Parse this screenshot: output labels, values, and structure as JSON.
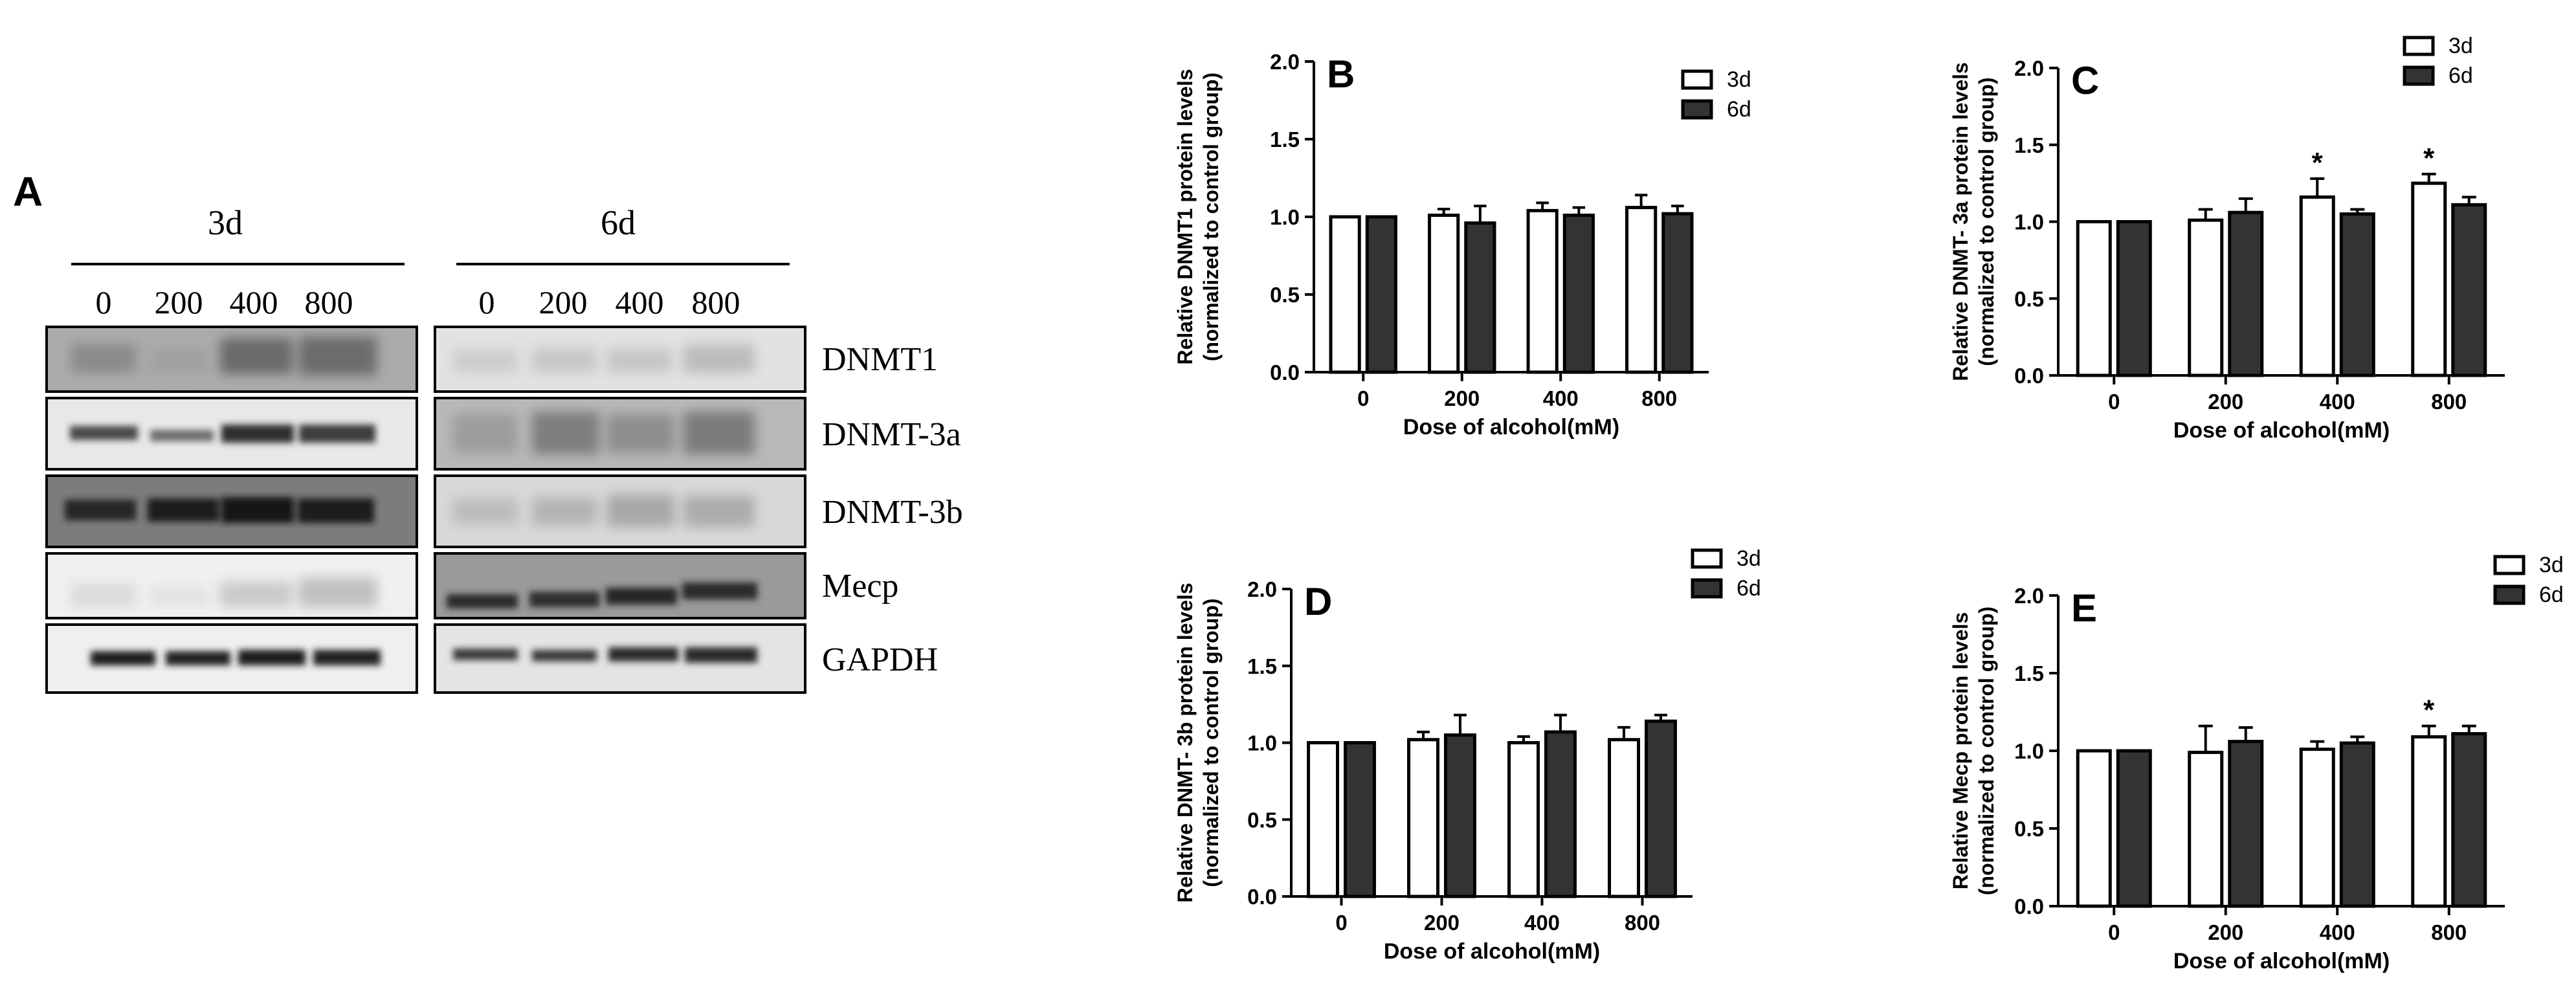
{
  "colors": {
    "bar_3d": "#ffffff",
    "bar_6d": "#333333",
    "axis": "#000000",
    "background": "#ffffff"
  },
  "western_blot": {
    "panel_label": "A",
    "groups": [
      {
        "label": "3d",
        "doses": [
          "0",
          "200",
          "400",
          "800"
        ]
      },
      {
        "label": "6d",
        "doses": [
          "0",
          "200",
          "400",
          "800"
        ]
      }
    ],
    "proteins": [
      "DNMT1",
      "DNMT-3a",
      "DNMT-3b",
      "Mecp",
      "GAPDH"
    ]
  },
  "chart_data": [
    {
      "panel": "B",
      "type": "bar",
      "title": "",
      "ylabel": "Relative DNMT1 protein levels\n(normalized to control group)",
      "xlabel": "Dose of alcohol(mM)",
      "categories": [
        "0",
        "200",
        "400",
        "800"
      ],
      "ylim": [
        0,
        2.0
      ],
      "yticks": [
        "0.0",
        "0.5",
        "1.0",
        "1.5",
        "2.0"
      ],
      "legend_position": "top-right",
      "series": [
        {
          "name": "3d",
          "values": [
            1.0,
            1.01,
            1.04,
            1.06
          ],
          "errors": [
            0.0,
            0.04,
            0.05,
            0.08
          ],
          "significant": [
            false,
            false,
            false,
            false
          ]
        },
        {
          "name": "6d",
          "values": [
            1.0,
            0.96,
            1.01,
            1.02
          ],
          "errors": [
            0.0,
            0.11,
            0.05,
            0.05
          ],
          "significant": [
            false,
            false,
            false,
            false
          ]
        }
      ]
    },
    {
      "panel": "C",
      "type": "bar",
      "title": "",
      "ylabel": "Relative DNMT- 3a protein levels\n(normalized to control group)",
      "xlabel": "Dose of alcohol(mM)",
      "categories": [
        "0",
        "200",
        "400",
        "800"
      ],
      "ylim": [
        0,
        2.0
      ],
      "yticks": [
        "0.0",
        "0.5",
        "1.0",
        "1.5",
        "2.0"
      ],
      "legend_position": "top-right",
      "series": [
        {
          "name": "3d",
          "values": [
            1.0,
            1.01,
            1.16,
            1.25
          ],
          "errors": [
            0.0,
            0.07,
            0.12,
            0.06
          ],
          "significant": [
            false,
            false,
            true,
            true
          ]
        },
        {
          "name": "6d",
          "values": [
            1.0,
            1.06,
            1.05,
            1.11
          ],
          "errors": [
            0.0,
            0.09,
            0.03,
            0.05
          ],
          "significant": [
            false,
            false,
            false,
            false
          ]
        }
      ],
      "significance_marker": "*"
    },
    {
      "panel": "D",
      "type": "bar",
      "title": "",
      "ylabel": "Relative DNMT- 3b protein levels\n(normalized to control group)",
      "xlabel": "Dose of alcohol(mM)",
      "categories": [
        "0",
        "200",
        "400",
        "800"
      ],
      "ylim": [
        0,
        2.0
      ],
      "yticks": [
        "0.0",
        "0.5",
        "1.0",
        "1.5",
        "2.0"
      ],
      "legend_position": "top-right",
      "series": [
        {
          "name": "3d",
          "values": [
            1.0,
            1.02,
            1.0,
            1.02
          ],
          "errors": [
            0.0,
            0.05,
            0.04,
            0.08
          ],
          "significant": [
            false,
            false,
            false,
            false
          ]
        },
        {
          "name": "6d",
          "values": [
            1.0,
            1.05,
            1.07,
            1.14
          ],
          "errors": [
            0.0,
            0.13,
            0.11,
            0.04
          ],
          "significant": [
            false,
            false,
            false,
            false
          ]
        }
      ]
    },
    {
      "panel": "E",
      "type": "bar",
      "title": "",
      "ylabel": "Relative Mecp protein levels\n(normalized to control group)",
      "xlabel": "Dose of alcohol(mM)",
      "categories": [
        "0",
        "200",
        "400",
        "800"
      ],
      "ylim": [
        0,
        2.0
      ],
      "yticks": [
        "0.0",
        "0.5",
        "1.0",
        "1.5",
        "2.0"
      ],
      "legend_position": "top-right",
      "series": [
        {
          "name": "3d",
          "values": [
            1.0,
            0.99,
            1.01,
            1.09
          ],
          "errors": [
            0.0,
            0.17,
            0.05,
            0.07
          ],
          "significant": [
            false,
            false,
            false,
            true
          ]
        },
        {
          "name": "6d",
          "values": [
            1.0,
            1.06,
            1.05,
            1.11
          ],
          "errors": [
            0.0,
            0.09,
            0.04,
            0.05
          ],
          "significant": [
            false,
            false,
            false,
            false
          ]
        }
      ],
      "significance_marker": "*"
    }
  ]
}
